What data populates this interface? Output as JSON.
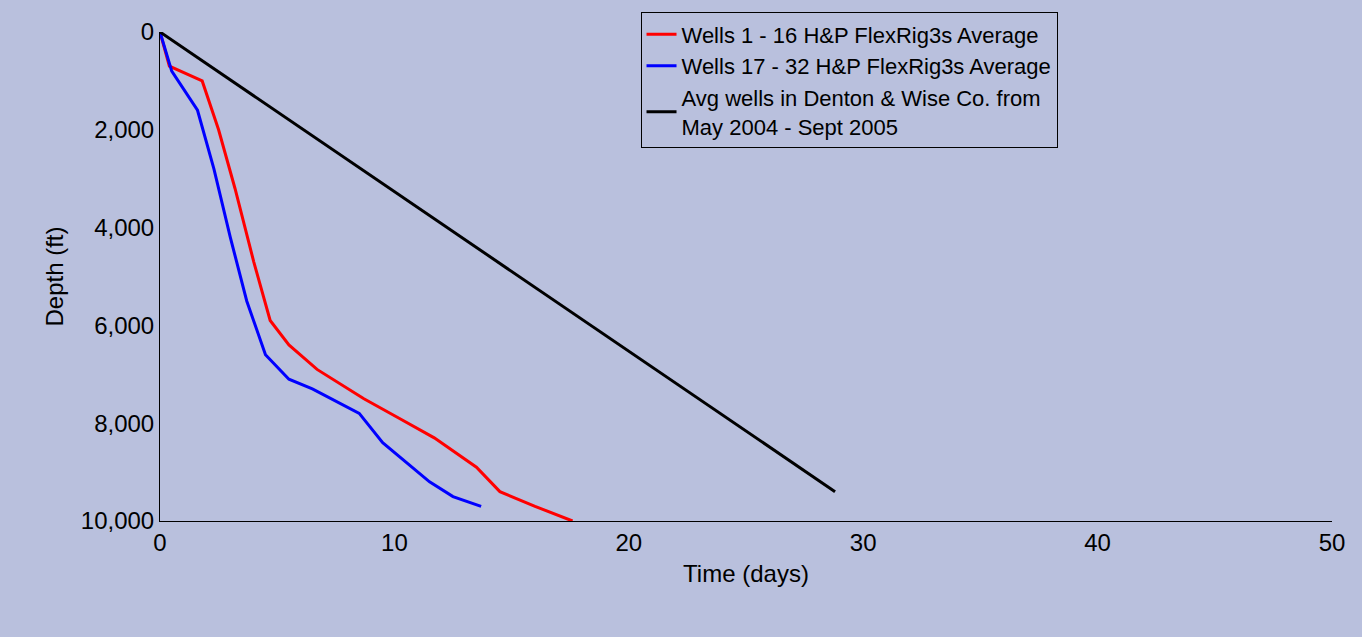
{
  "chart_data": {
    "type": "line",
    "x_label": "Time (days)",
    "y_label": "Depth (ft)",
    "xlim": [
      0,
      50
    ],
    "xticks": [
      0,
      10,
      20,
      30,
      40,
      50
    ],
    "ylim": [
      10000,
      0
    ],
    "yticks": [
      0,
      {
        "value": 2000,
        "label": "2,000"
      },
      {
        "value": 4000,
        "label": "4,000"
      },
      {
        "value": 6000,
        "label": "6,000"
      },
      {
        "value": 8000,
        "label": "8,000"
      },
      {
        "value": 10000,
        "label": "10,000"
      }
    ],
    "grid": false,
    "legend": "top right",
    "series": [
      {
        "name": "Wells 1 - 16 H&P FlexRig3s Average",
        "color": "#ff0000",
        "x": [
          0,
          0.4,
          1.8,
          2.5,
          3.2,
          4.0,
          4.7,
          5.5,
          6.7,
          8.7,
          10.2,
          11.7,
          13.5,
          14.5,
          16.0,
          17.6
        ],
        "values": [
          0,
          700,
          1000,
          2000,
          3200,
          4700,
          5900,
          6400,
          6900,
          7500,
          7900,
          8300,
          8900,
          9400,
          9700,
          10000
        ]
      },
      {
        "name": "Wells 17 - 32 H&P FlexRig3s Average",
        "color": "#0000ff",
        "x": [
          0,
          0.5,
          1.6,
          2.3,
          3.0,
          3.7,
          4.5,
          5.5,
          6.5,
          8.5,
          9.5,
          11.5,
          12.5,
          13.7
        ],
        "values": [
          0,
          800,
          1600,
          2800,
          4200,
          5500,
          6600,
          7100,
          7300,
          7800,
          8400,
          9200,
          9500,
          9700
        ]
      },
      {
        "name": "Avg wells in Denton & Wise Co. from May 2004 - Sept 2005",
        "color": "#000000",
        "x": [
          0,
          28.8
        ],
        "values": [
          0,
          9400
        ]
      }
    ]
  }
}
